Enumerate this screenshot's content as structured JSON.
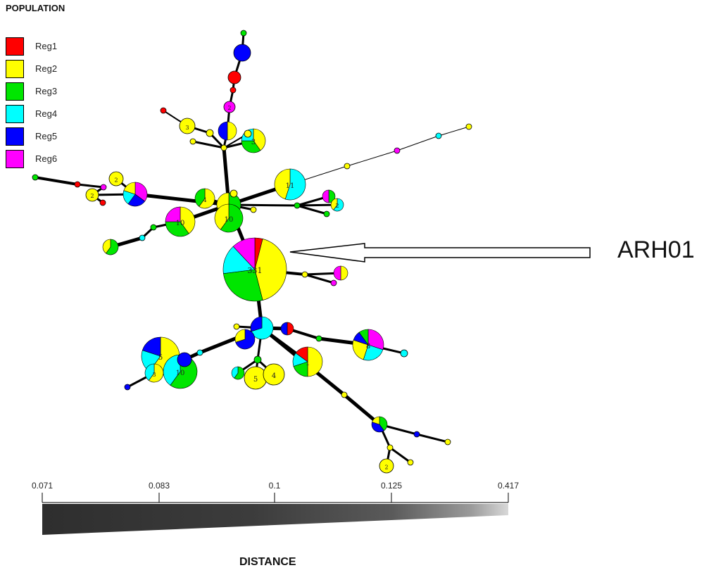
{
  "legend": {
    "title": "POPULATION",
    "items": [
      {
        "label": "Reg1",
        "color": "#ff0000"
      },
      {
        "label": "Reg2",
        "color": "#ffff00"
      },
      {
        "label": "Reg3",
        "color": "#00e600"
      },
      {
        "label": "Reg4",
        "color": "#00ffff"
      },
      {
        "label": "Reg5",
        "color": "#0000ff"
      },
      {
        "label": "Reg6",
        "color": "#ff00ff"
      }
    ]
  },
  "callout_label": "ARH01",
  "distance_scale": {
    "title": "DISTANCE",
    "ticks": [
      "0.071",
      "0.083",
      "0.1",
      "0.125",
      "0.417"
    ]
  },
  "node_labels": [
    "331",
    "11",
    "10",
    "10",
    "5",
    "4",
    "2",
    "2",
    "3",
    "5",
    "5",
    "4",
    "4",
    "3",
    "2",
    "3",
    "3",
    "2",
    "2",
    "10",
    "10"
  ]
}
